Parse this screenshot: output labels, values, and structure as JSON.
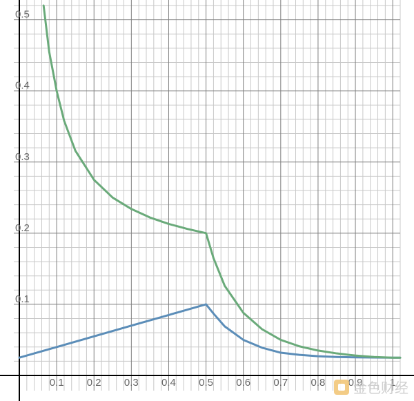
{
  "chart_data": {
    "type": "line",
    "title": "",
    "xlabel": "",
    "ylabel": "",
    "xlim": [
      0,
      1.02
    ],
    "ylim": [
      0,
      0.52
    ],
    "grid": true,
    "x_ticks": [
      {
        "value": 0.1,
        "label": "0.1"
      },
      {
        "value": 0.2,
        "label": "0.2"
      },
      {
        "value": 0.3,
        "label": "0.3"
      },
      {
        "value": 0.4,
        "label": "0.4"
      },
      {
        "value": 0.5,
        "label": "0.5"
      },
      {
        "value": 0.6,
        "label": "0.6"
      },
      {
        "value": 0.7,
        "label": "0.7"
      },
      {
        "value": 0.8,
        "label": "0.8"
      },
      {
        "value": 0.9,
        "label": "0.9"
      },
      {
        "value": 1.0,
        "label": "1"
      }
    ],
    "y_ticks": [
      {
        "value": 0.1,
        "label": "0.1"
      },
      {
        "value": 0.2,
        "label": "0.2"
      },
      {
        "value": 0.3,
        "label": "0.3"
      },
      {
        "value": 0.4,
        "label": "0.4"
      },
      {
        "value": 0.5,
        "label": "0.5"
      }
    ],
    "series": [
      {
        "color": "#5b8db8",
        "points": [
          [
            0,
            0.025
          ],
          [
            0.1,
            0.04
          ],
          [
            0.2,
            0.055
          ],
          [
            0.3,
            0.07
          ],
          [
            0.4,
            0.085
          ],
          [
            0.5,
            0.1
          ],
          [
            0.52,
            0.087
          ],
          [
            0.55,
            0.069
          ],
          [
            0.6,
            0.05
          ],
          [
            0.65,
            0.039
          ],
          [
            0.7,
            0.032
          ],
          [
            0.75,
            0.029
          ],
          [
            0.8,
            0.027
          ],
          [
            0.85,
            0.026
          ],
          [
            0.9,
            0.0255
          ],
          [
            0.95,
            0.0252
          ],
          [
            1.0,
            0.025
          ],
          [
            1.02,
            0.025
          ]
        ]
      },
      {
        "color": "#6aaa7a",
        "points": [
          [
            0.065,
            0.52
          ],
          [
            0.08,
            0.455
          ],
          [
            0.1,
            0.4
          ],
          [
            0.12,
            0.358
          ],
          [
            0.15,
            0.316
          ],
          [
            0.2,
            0.275
          ],
          [
            0.25,
            0.25
          ],
          [
            0.3,
            0.234
          ],
          [
            0.35,
            0.222
          ],
          [
            0.4,
            0.213
          ],
          [
            0.45,
            0.206
          ],
          [
            0.5,
            0.2
          ],
          [
            0.52,
            0.165
          ],
          [
            0.55,
            0.126
          ],
          [
            0.6,
            0.088
          ],
          [
            0.65,
            0.065
          ],
          [
            0.7,
            0.05
          ],
          [
            0.75,
            0.041
          ],
          [
            0.8,
            0.035
          ],
          [
            0.85,
            0.031
          ],
          [
            0.9,
            0.028
          ],
          [
            0.95,
            0.026
          ],
          [
            1.0,
            0.025
          ],
          [
            1.02,
            0.025
          ]
        ]
      }
    ]
  },
  "watermark": {
    "text": "金色财经",
    "icon": "logo-icon"
  }
}
